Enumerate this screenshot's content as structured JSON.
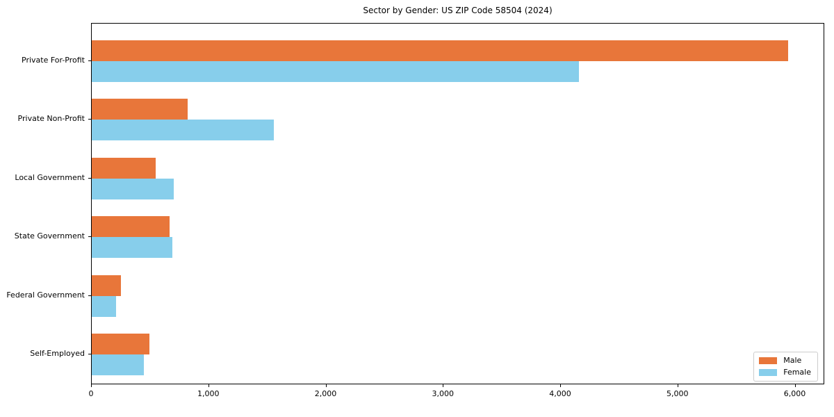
{
  "chart_data": {
    "type": "bar",
    "orientation": "horizontal",
    "title": "Sector by Gender: US ZIP Code 58504 (2024)",
    "categories": [
      "Private For-Profit",
      "Private Non-Profit",
      "Local Government",
      "State Government",
      "Federal Government",
      "Self-Employed"
    ],
    "series": [
      {
        "name": "Male",
        "color": "#e8763a",
        "values": [
          5935,
          820,
          545,
          665,
          250,
          490
        ]
      },
      {
        "name": "Female",
        "color": "#87ceeb",
        "values": [
          4155,
          1555,
          700,
          690,
          205,
          445
        ]
      }
    ],
    "xlabel": "",
    "ylabel": "",
    "xlim": [
      0,
      6240
    ],
    "xticks": [
      0,
      1000,
      2000,
      3000,
      4000,
      5000,
      6000
    ],
    "xtick_labels": [
      "0",
      "1,000",
      "2,000",
      "3,000",
      "4,000",
      "5,000",
      "6,000"
    ],
    "grid": false,
    "legend": {
      "position": "lower right",
      "entries": [
        "Male",
        "Female"
      ]
    },
    "colors": {
      "frame": "#000000",
      "legend_border": "#cccccc",
      "background": "#ffffff"
    }
  }
}
